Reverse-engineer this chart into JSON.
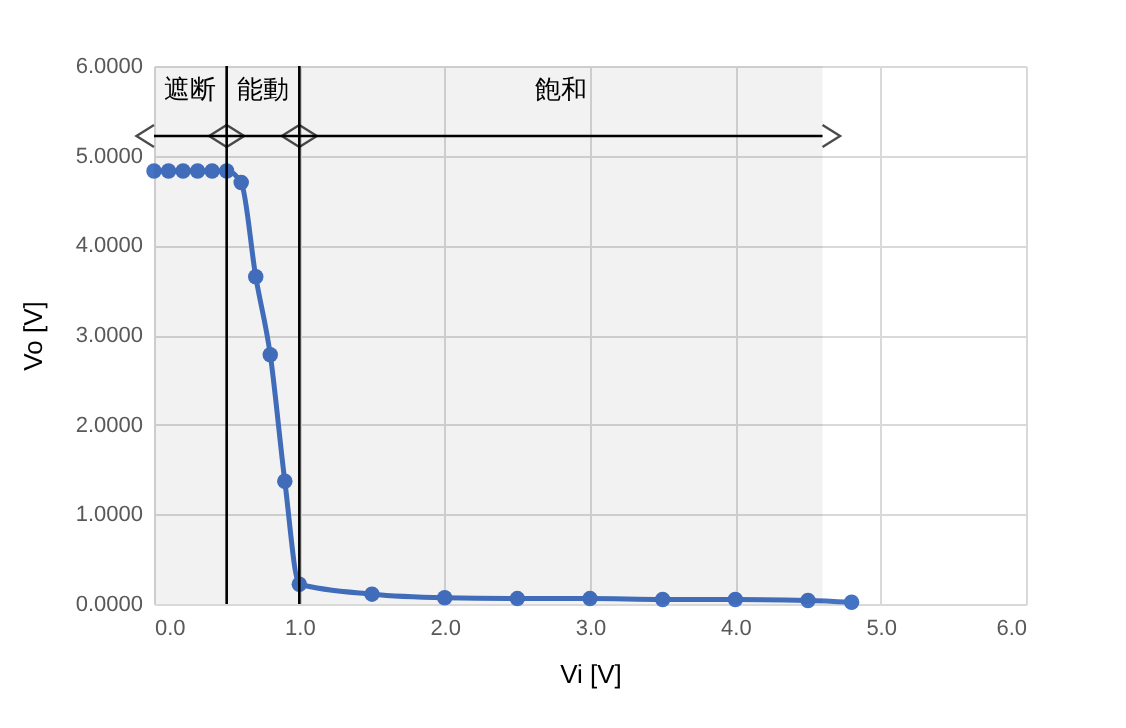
{
  "chart_data": {
    "type": "line",
    "xlabel": "Vi  [V]",
    "ylabel": "Vo  [V]",
    "x": [
      0,
      0.1,
      0.2,
      0.3,
      0.4,
      0.5,
      0.6,
      0.7,
      0.8,
      0.9,
      1.0,
      1.5,
      2.0,
      2.5,
      3.0,
      3.5,
      4.0,
      4.5,
      4.8
    ],
    "series": [
      {
        "color": "#4472c4",
        "values": [
          4.83,
          4.83,
          4.83,
          4.83,
          4.83,
          4.83,
          4.7,
          3.65,
          2.78,
          1.37,
          0.22,
          0.11,
          0.07,
          0.06,
          0.06,
          0.05,
          0.05,
          0.04,
          0.02
        ]
      }
    ],
    "xlim": [
      0,
      6
    ],
    "ylim": [
      0,
      6
    ],
    "xticks": [
      {
        "value": 0,
        "label": "0.0"
      },
      {
        "value": 1,
        "label": "1.0"
      },
      {
        "value": 2,
        "label": "2.0"
      },
      {
        "value": 3,
        "label": "3.0"
      },
      {
        "value": 4,
        "label": "4.0"
      },
      {
        "value": 5,
        "label": "5.0"
      },
      {
        "value": 6,
        "label": "6.0"
      }
    ],
    "yticks": [
      {
        "value": 0,
        "label": "0.0000"
      },
      {
        "value": 1,
        "label": "1.0000"
      },
      {
        "value": 2,
        "label": "2.0000"
      },
      {
        "value": 3,
        "label": "3.0000"
      },
      {
        "value": 4,
        "label": "4.0000"
      },
      {
        "value": 5,
        "label": "5.0000"
      },
      {
        "value": 6,
        "label": "6.0000"
      }
    ],
    "ref_lines": [
      {
        "axis": "x",
        "value": 0.5,
        "color": "#000000"
      },
      {
        "axis": "x",
        "value": 1.0,
        "color": "#000000"
      }
    ],
    "bands": [
      {
        "axis": "x",
        "from": 0,
        "to": 0.5,
        "label": "遮断"
      },
      {
        "axis": "x",
        "from": 0.5,
        "to": 1.0,
        "label": "能動"
      },
      {
        "axis": "x",
        "from": 1.0,
        "to": 4.6,
        "label": "飽和"
      }
    ],
    "grid": true,
    "marker": "circle",
    "line_style": "solid"
  }
}
